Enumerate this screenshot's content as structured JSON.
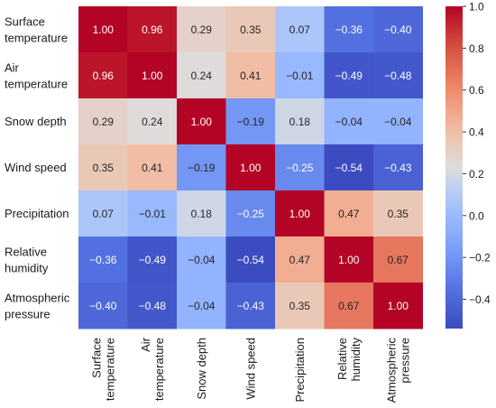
{
  "chart_data": {
    "type": "heatmap",
    "title": "",
    "rows": [
      [
        "Surface",
        "temperature"
      ],
      [
        "Air",
        "temperature"
      ],
      [
        "Snow depth"
      ],
      [
        "Wind speed"
      ],
      [
        "Precipitation"
      ],
      [
        "Relative",
        "humidity"
      ],
      [
        "Atmospheric",
        "pressure"
      ]
    ],
    "columns": [
      [
        "Surface",
        "temperature"
      ],
      [
        "Air",
        "temperature"
      ],
      [
        "Snow depth"
      ],
      [
        "Wind speed"
      ],
      [
        "Precipitation"
      ],
      [
        "Relative",
        "humidity"
      ],
      [
        "Atmospheric",
        "pressure"
      ]
    ],
    "values": [
      [
        1.0,
        0.96,
        0.29,
        0.35,
        0.07,
        -0.36,
        -0.4
      ],
      [
        0.96,
        1.0,
        0.24,
        0.41,
        -0.01,
        -0.49,
        -0.48
      ],
      [
        0.29,
        0.24,
        1.0,
        -0.19,
        0.18,
        -0.04,
        -0.04
      ],
      [
        0.35,
        0.41,
        -0.19,
        1.0,
        -0.25,
        -0.54,
        -0.43
      ],
      [
        0.07,
        -0.01,
        0.18,
        -0.25,
        1.0,
        0.47,
        0.35
      ],
      [
        -0.36,
        -0.49,
        -0.04,
        -0.54,
        0.47,
        1.0,
        0.67
      ],
      [
        -0.4,
        -0.48,
        -0.04,
        -0.43,
        0.35,
        0.67,
        1.0
      ]
    ],
    "vmin": -0.54,
    "vmax": 1.0,
    "colormap": "coolwarm",
    "colorbar_ticks": [
      "1.0",
      "0.8",
      "0.6",
      "0.4",
      "0.2",
      "0.0",
      "−0.2",
      "−0.4"
    ],
    "colorbar_tick_values": [
      1.0,
      0.8,
      0.6,
      0.4,
      0.2,
      0.0,
      -0.2,
      -0.4
    ],
    "colors": {
      "low": "#3b4cc0",
      "mid": "#dddddd",
      "high": "#b40426",
      "light_text": "#ffffff",
      "dark_text": "#262626"
    }
  }
}
